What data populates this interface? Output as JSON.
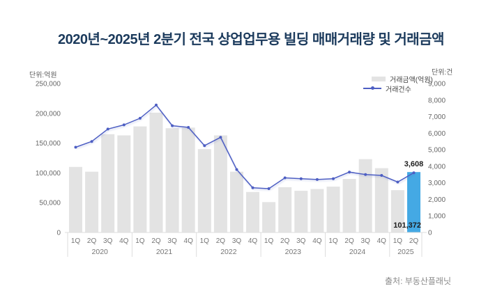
{
  "page": {
    "title": "2020년~2025년 2분기 전국 상업업무용 빌딩 매매거래량 및 거래금액",
    "source": "출처: 부동산플래닛"
  },
  "units": {
    "left": "단위:억원",
    "right": "단위:건"
  },
  "legend": {
    "amount_label": "거래금액(억원)",
    "count_label": "거래건수"
  },
  "colors": {
    "title": "#1b3a5c",
    "bar": "#e3e3e3",
    "bar_highlight": "#44a9e4",
    "line": "#4d5ec3",
    "axis_text": "#666666",
    "xlabel_text": "#767676",
    "annotation": "#1d1d1d",
    "grid": "#dddddd"
  },
  "chart_data": {
    "type": "combo",
    "title": "2020년~2025년 2분기 전국 상업업무용 빌딩 매매거래량 및 거래금액",
    "grid": false,
    "legend_position": "top-right",
    "groups": [
      {
        "year": "2020",
        "quarters": [
          "1Q",
          "2Q",
          "3Q",
          "4Q"
        ]
      },
      {
        "year": "2021",
        "quarters": [
          "1Q",
          "2Q",
          "3Q",
          "4Q"
        ]
      },
      {
        "year": "2022",
        "quarters": [
          "1Q",
          "2Q",
          "3Q",
          "4Q"
        ]
      },
      {
        "year": "2023",
        "quarters": [
          "1Q",
          "2Q",
          "3Q",
          "4Q"
        ]
      },
      {
        "year": "2024",
        "quarters": [
          "1Q",
          "2Q",
          "3Q",
          "4Q"
        ]
      },
      {
        "year": "2025",
        "quarters": [
          "1Q",
          "2Q"
        ]
      }
    ],
    "series": [
      {
        "name": "거래금액(억원)",
        "type": "bar",
        "axis": "left",
        "highlight_index": 21,
        "values": [
          110000,
          102000,
          165000,
          163000,
          178000,
          201000,
          175000,
          176000,
          140000,
          163000,
          102000,
          68000,
          51000,
          76000,
          70000,
          73000,
          77000,
          90000,
          123000,
          108000,
          71000,
          101372
        ]
      },
      {
        "name": "거래건수",
        "type": "line",
        "axis": "right",
        "values": [
          5150,
          5500,
          6250,
          6500,
          6900,
          7700,
          6450,
          6350,
          5250,
          5750,
          3800,
          2700,
          2650,
          3300,
          3250,
          3200,
          3250,
          3650,
          3500,
          3450,
          3050,
          3608
        ]
      }
    ],
    "left_axis": {
      "label": "단위:억원",
      "min": 0,
      "max": 250000,
      "step": 50000,
      "tick_labels": [
        "0",
        "50,000",
        "100,000",
        "150,000",
        "200,000",
        "250,000"
      ]
    },
    "right_axis": {
      "label": "단위:건",
      "min": 0,
      "max": 9000,
      "step": 1000,
      "tick_labels": [
        "0",
        "1,000",
        "2,000",
        "3,000",
        "4,000",
        "5,000",
        "6,000",
        "7,000",
        "8,000",
        "9,000"
      ]
    },
    "annotations": [
      {
        "text": "3,608",
        "series": "line",
        "index": 21,
        "position": "above-point"
      },
      {
        "text": "101,372",
        "series": "bar",
        "index": 21,
        "position": "bar-bottom"
      }
    ]
  }
}
